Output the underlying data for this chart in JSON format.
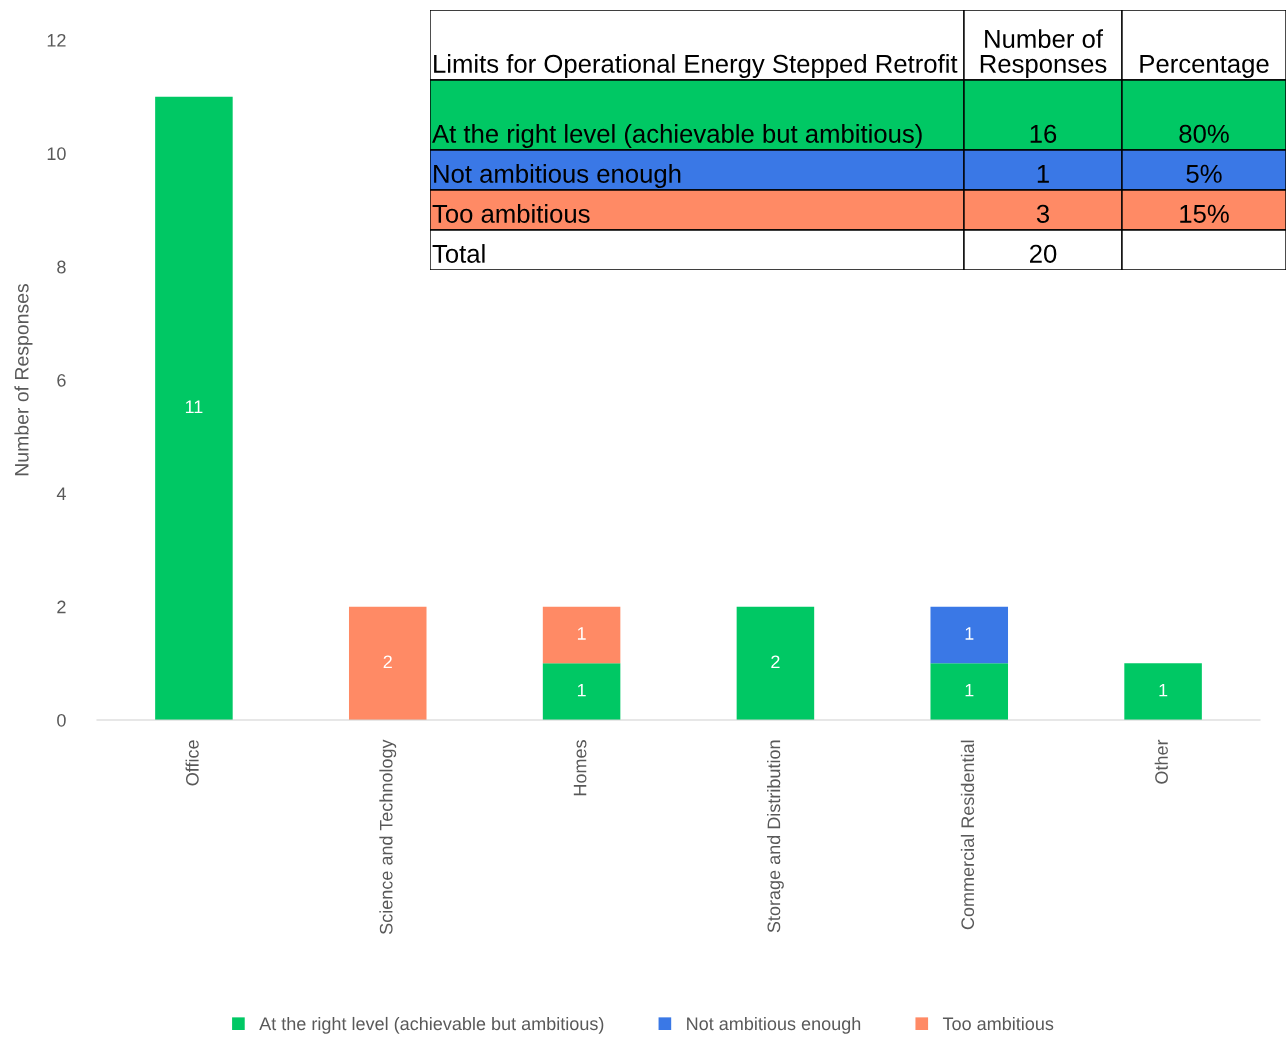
{
  "chart_data": {
    "type": "bar",
    "stacked": true,
    "ylabel": "Number of Responses",
    "categories": [
      "Office",
      "Science and Technology",
      "Homes",
      "Storage and Distribution",
      "Commercial Residential",
      "Other"
    ],
    "series": [
      {
        "name": "At the right level (achievable but ambitious)",
        "color": "#00c864",
        "values": [
          11,
          null,
          1,
          2,
          1,
          1
        ],
        "value_labels": [
          "11",
          null,
          "1",
          "2",
          "1",
          "1"
        ]
      },
      {
        "name": "Not ambitious enough",
        "color": "#3a78e6",
        "values": [
          null,
          null,
          null,
          null,
          1,
          null
        ],
        "value_labels": [
          null,
          null,
          null,
          null,
          "1",
          null
        ]
      },
      {
        "name": "Too ambitious",
        "color": "#ff8a65",
        "values": [
          null,
          2,
          1,
          null,
          null,
          null
        ],
        "value_labels": [
          null,
          "2",
          "1",
          null,
          null,
          null
        ]
      }
    ],
    "ylim": [
      0,
      12
    ],
    "yticks": [
      0,
      2,
      4,
      6,
      8,
      10,
      12
    ],
    "grid": false,
    "legend": "bottom",
    "annotations": [
      "Limits for Operational Energy Stepped Retrofit",
      "Number of Responses",
      "Percentage",
      "At the right level (achievable but ambitious)",
      "16",
      "80%",
      "Not ambitious enough",
      "1",
      "5%",
      "Too ambitious",
      "3",
      "15%",
      "Total",
      "20"
    ]
  }
}
